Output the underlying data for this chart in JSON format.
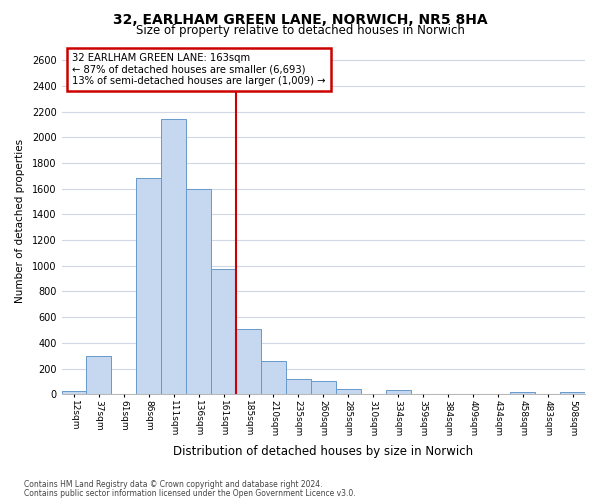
{
  "title": "32, EARLHAM GREEN LANE, NORWICH, NR5 8HA",
  "subtitle": "Size of property relative to detached houses in Norwich",
  "xlabel": "Distribution of detached houses by size in Norwich",
  "ylabel": "Number of detached properties",
  "bar_color": "#c5d8f0",
  "bar_edge_color": "#6699cc",
  "background_color": "#ffffff",
  "fig_background_color": "#ffffff",
  "grid_color": "#d0d8e8",
  "annotation_box_color": "#ffffff",
  "annotation_box_edge": "#cc0000",
  "vline_color": "#cc0000",
  "annotation_title": "32 EARLHAM GREEN LANE: 163sqm",
  "annotation_line1": "← 87% of detached houses are smaller (6,693)",
  "annotation_line2": "13% of semi-detached houses are larger (1,009) →",
  "footer1": "Contains HM Land Registry data © Crown copyright and database right 2024.",
  "footer2": "Contains public sector information licensed under the Open Government Licence v3.0.",
  "categories": [
    "12sqm",
    "37sqm",
    "61sqm",
    "86sqm",
    "111sqm",
    "136sqm",
    "161sqm",
    "185sqm",
    "210sqm",
    "235sqm",
    "260sqm",
    "285sqm",
    "310sqm",
    "334sqm",
    "359sqm",
    "384sqm",
    "409sqm",
    "434sqm",
    "458sqm",
    "483sqm",
    "508sqm"
  ],
  "values": [
    25,
    300,
    0,
    1680,
    2140,
    1600,
    975,
    510,
    255,
    120,
    100,
    40,
    0,
    35,
    0,
    0,
    0,
    0,
    20,
    0,
    20
  ],
  "vline_index": 6,
  "ylim": [
    0,
    2700
  ],
  "yticks": [
    0,
    200,
    400,
    600,
    800,
    1000,
    1200,
    1400,
    1600,
    1800,
    2000,
    2200,
    2400,
    2600
  ]
}
